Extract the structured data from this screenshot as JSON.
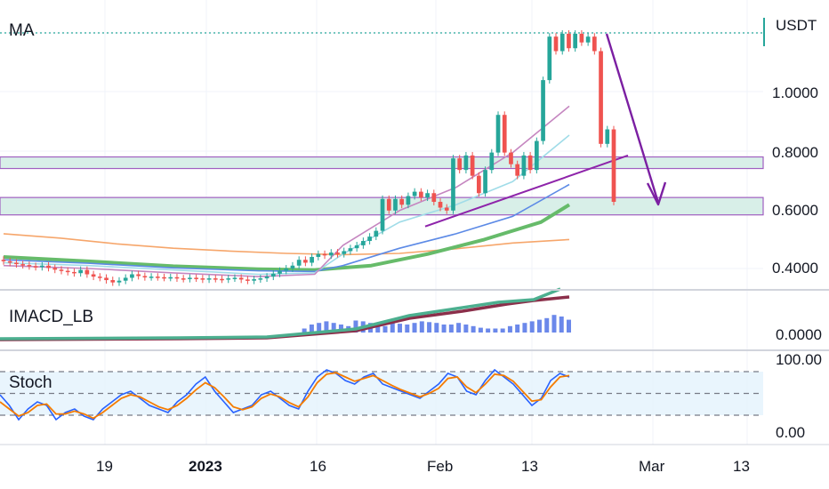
{
  "panes": {
    "price_label": "MA",
    "macd_label": "IMACD_LB",
    "stoch_label": "Stoch"
  },
  "price_axis": {
    "currency": "USDT",
    "ticks": [
      "1.0000",
      "0.8000",
      "0.6000",
      "0.4000"
    ]
  },
  "macd_axis": {
    "ticks": [
      "0.0000"
    ]
  },
  "stoch_axis": {
    "ticks": [
      "100.00",
      "0.00"
    ]
  },
  "time_axis": {
    "ticks": [
      {
        "label": "19",
        "bold": false
      },
      {
        "label": "2023",
        "bold": true
      },
      {
        "label": "16",
        "bold": false
      },
      {
        "label": "Feb",
        "bold": false
      },
      {
        "label": "13",
        "bold": false
      },
      {
        "label": "Mar",
        "bold": false
      },
      {
        "label": "13",
        "bold": false
      }
    ]
  },
  "colors": {
    "up": "#26a69a",
    "down": "#ef5350",
    "zone_fill": "#d8efe8",
    "zone_border": "#a05fc0",
    "arrow": "#7b1fa2",
    "stoch_k": "#2962ff",
    "stoch_d": "#f57c00",
    "macd_hist": "#5b7be8",
    "grid": "#f0f3fa"
  },
  "chart_data": {
    "type": "candlestick",
    "symbol_quote": "USDT",
    "date_ticks": [
      "19",
      "2023",
      "16",
      "Feb",
      "13",
      "Mar",
      "13"
    ],
    "price_range": [
      0.33,
      1.27
    ],
    "candles": [
      [
        0.43,
        0.425
      ],
      [
        0.425,
        0.42
      ],
      [
        0.42,
        0.415
      ],
      [
        0.415,
        0.412
      ],
      [
        0.412,
        0.408
      ],
      [
        0.408,
        0.405
      ],
      [
        0.405,
        0.41
      ],
      [
        0.41,
        0.402
      ],
      [
        0.402,
        0.396
      ],
      [
        0.396,
        0.392
      ],
      [
        0.392,
        0.388
      ],
      [
        0.388,
        0.384
      ],
      [
        0.384,
        0.395
      ],
      [
        0.395,
        0.38
      ],
      [
        0.38,
        0.372
      ],
      [
        0.372,
        0.368
      ],
      [
        0.368,
        0.36
      ],
      [
        0.36,
        0.352
      ],
      [
        0.352,
        0.358
      ],
      [
        0.358,
        0.368
      ],
      [
        0.368,
        0.38
      ],
      [
        0.38,
        0.374
      ],
      [
        0.374,
        0.37
      ],
      [
        0.37,
        0.372
      ],
      [
        0.372,
        0.37
      ],
      [
        0.37,
        0.368
      ],
      [
        0.368,
        0.37
      ],
      [
        0.37,
        0.366
      ],
      [
        0.366,
        0.364
      ],
      [
        0.364,
        0.368
      ],
      [
        0.368,
        0.366
      ],
      [
        0.366,
        0.362
      ],
      [
        0.362,
        0.366
      ],
      [
        0.366,
        0.364
      ],
      [
        0.364,
        0.362
      ],
      [
        0.362,
        0.366
      ],
      [
        0.366,
        0.368
      ],
      [
        0.368,
        0.362
      ],
      [
        0.362,
        0.358
      ],
      [
        0.358,
        0.363
      ],
      [
        0.363,
        0.366
      ],
      [
        0.366,
        0.372
      ],
      [
        0.372,
        0.382
      ],
      [
        0.382,
        0.392
      ],
      [
        0.392,
        0.4
      ],
      [
        0.4,
        0.41
      ],
      [
        0.41,
        0.43
      ],
      [
        0.43,
        0.42
      ],
      [
        0.42,
        0.44
      ],
      [
        0.44,
        0.45
      ],
      [
        0.45,
        0.445
      ],
      [
        0.445,
        0.455
      ],
      [
        0.455,
        0.45
      ],
      [
        0.45,
        0.46
      ],
      [
        0.46,
        0.47
      ],
      [
        0.47,
        0.48
      ],
      [
        0.48,
        0.495
      ],
      [
        0.495,
        0.51
      ],
      [
        0.51,
        0.53
      ],
      [
        0.53,
        0.64
      ],
      [
        0.64,
        0.6
      ],
      [
        0.6,
        0.64
      ],
      [
        0.64,
        0.62
      ],
      [
        0.62,
        0.65
      ],
      [
        0.65,
        0.665
      ],
      [
        0.665,
        0.645
      ],
      [
        0.645,
        0.66
      ],
      [
        0.66,
        0.63
      ],
      [
        0.63,
        0.61
      ],
      [
        0.61,
        0.6
      ],
      [
        0.6,
        0.78
      ],
      [
        0.78,
        0.74
      ],
      [
        0.74,
        0.79
      ],
      [
        0.79,
        0.72
      ],
      [
        0.72,
        0.66
      ],
      [
        0.66,
        0.74
      ],
      [
        0.74,
        0.8
      ],
      [
        0.8,
        0.93
      ],
      [
        0.93,
        0.8
      ],
      [
        0.8,
        0.76
      ],
      [
        0.76,
        0.72
      ],
      [
        0.72,
        0.79
      ],
      [
        0.79,
        0.74
      ],
      [
        0.74,
        0.84
      ],
      [
        0.84,
        1.05
      ],
      [
        1.05,
        1.2
      ],
      [
        1.2,
        1.15
      ],
      [
        1.15,
        1.21
      ],
      [
        1.21,
        1.16
      ],
      [
        1.16,
        1.21
      ],
      [
        1.21,
        1.18
      ],
      [
        1.18,
        1.2
      ],
      [
        1.2,
        1.15
      ],
      [
        1.15,
        0.83
      ],
      [
        0.83,
        0.88
      ],
      [
        0.88,
        0.63
      ]
    ],
    "moving_averages": [
      {
        "points": [
          [
            0,
            0.52
          ],
          [
            10,
            0.505
          ],
          [
            20,
            0.485
          ],
          [
            30,
            0.47
          ],
          [
            40,
            0.46
          ],
          [
            50,
            0.452
          ],
          [
            60,
            0.448
          ],
          [
            70,
            0.452
          ],
          [
            80,
            0.468
          ],
          [
            90,
            0.488
          ],
          [
            100,
            0.5
          ]
        ],
        "color": "#f6a66b"
      },
      {
        "points": [
          [
            0,
            0.44
          ],
          [
            15,
            0.425
          ],
          [
            30,
            0.408
          ],
          [
            45,
            0.398
          ],
          [
            55,
            0.395
          ],
          [
            65,
            0.41
          ],
          [
            75,
            0.45
          ],
          [
            85,
            0.5
          ],
          [
            95,
            0.56
          ],
          [
            100,
            0.62
          ]
        ],
        "color": "#66bb6a"
      },
      {
        "points": [
          [
            0,
            0.43
          ],
          [
            15,
            0.418
          ],
          [
            30,
            0.402
          ],
          [
            45,
            0.392
          ],
          [
            55,
            0.39
          ],
          [
            60,
            0.41
          ],
          [
            70,
            0.47
          ],
          [
            80,
            0.52
          ],
          [
            90,
            0.58
          ],
          [
            100,
            0.69
          ]
        ],
        "color": "#5c8ae6"
      },
      {
        "points": [
          [
            0,
            0.42
          ],
          [
            15,
            0.41
          ],
          [
            30,
            0.395
          ],
          [
            45,
            0.38
          ],
          [
            55,
            0.385
          ],
          [
            60,
            0.45
          ],
          [
            70,
            0.56
          ],
          [
            80,
            0.62
          ],
          [
            90,
            0.7
          ],
          [
            100,
            0.86
          ]
        ],
        "color": "#a0dce8"
      },
      {
        "points": [
          [
            0,
            0.41
          ],
          [
            15,
            0.4
          ],
          [
            30,
            0.385
          ],
          [
            45,
            0.372
          ],
          [
            55,
            0.38
          ],
          [
            60,
            0.48
          ],
          [
            70,
            0.6
          ],
          [
            80,
            0.68
          ],
          [
            90,
            0.8
          ],
          [
            100,
            0.96
          ]
        ],
        "color": "#c586c0"
      }
    ],
    "zones": [
      [
        0.745,
        0.785
      ],
      [
        0.585,
        0.645
      ]
    ],
    "trendline": [
      [
        0.545
      ],
      [
        0.79
      ]
    ],
    "macd_histogram": [
      0,
      0,
      0,
      0,
      0,
      0,
      0,
      0,
      0,
      0,
      0,
      0,
      0,
      0,
      0,
      0,
      0,
      0,
      0,
      0,
      0,
      0,
      0,
      0,
      0,
      0,
      0,
      0,
      0,
      0,
      0,
      0,
      0,
      0,
      0,
      0,
      0,
      0,
      0,
      0,
      0,
      0.05,
      0.1,
      0.12,
      0.14,
      0.12,
      0.1,
      0.08,
      0.15,
      0.14,
      0.12,
      0.1,
      0.08,
      0.12,
      0.11,
      0.1,
      0.12,
      0.14,
      0.13,
      0.12,
      0.1,
      0.1,
      0.12,
      0.1,
      0.08,
      0.06,
      0.05,
      0.05,
      0.05,
      0.08,
      0.1,
      0.12,
      0.14,
      0.16,
      0.18,
      0.22,
      0.2,
      0.16
    ],
    "stoch_k": [
      55,
      40,
      20,
      35,
      45,
      40,
      20,
      30,
      35,
      25,
      20,
      35,
      45,
      55,
      60,
      50,
      40,
      35,
      30,
      45,
      55,
      70,
      80,
      60,
      45,
      30,
      35,
      40,
      55,
      60,
      50,
      40,
      35,
      60,
      80,
      90,
      85,
      75,
      70,
      80,
      85,
      70,
      65,
      60,
      55,
      50,
      60,
      70,
      85,
      80,
      60,
      55,
      75,
      90,
      80,
      70,
      55,
      40,
      50,
      75,
      85,
      80
    ],
    "stoch_d": [
      45,
      35,
      25,
      30,
      40,
      42,
      28,
      28,
      32,
      28,
      22,
      30,
      40,
      50,
      55,
      52,
      45,
      38,
      34,
      40,
      50,
      62,
      72,
      65,
      52,
      38,
      34,
      38,
      50,
      56,
      52,
      44,
      38,
      52,
      72,
      84,
      86,
      80,
      74,
      78,
      82,
      75,
      68,
      62,
      57,
      52,
      57,
      64,
      78,
      80,
      66,
      58,
      70,
      84,
      82,
      74,
      60,
      46,
      48,
      66,
      80,
      82
    ]
  }
}
